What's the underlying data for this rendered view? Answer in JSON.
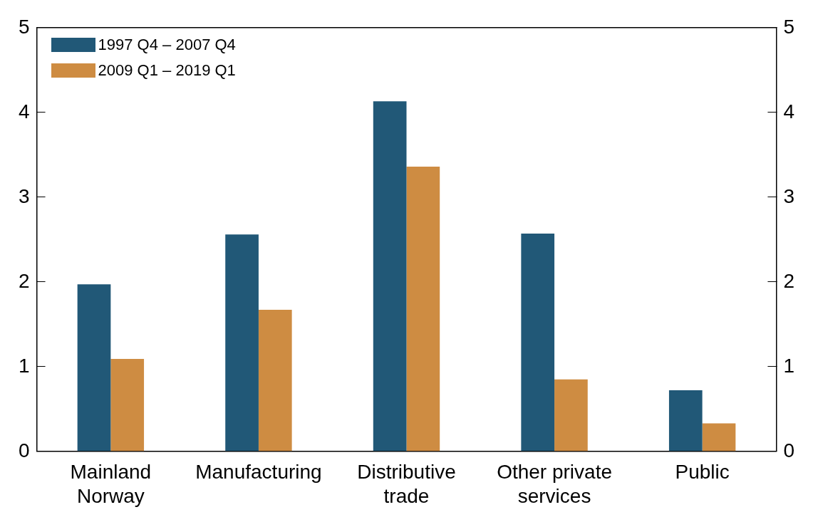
{
  "chart_data": {
    "type": "bar",
    "categories": [
      "Mainland Norway",
      "Manufacturing",
      "Distributive trade",
      "Other private services",
      "Public"
    ],
    "series": [
      {
        "name": "1997 Q4 – 2007 Q4",
        "color": "#215877",
        "values": [
          1.97,
          2.56,
          4.13,
          2.57,
          0.72
        ]
      },
      {
        "name": "2009 Q1 – 2019 Q1",
        "color": "#ce8c42",
        "values": [
          1.09,
          1.67,
          3.36,
          0.85,
          0.33
        ]
      }
    ],
    "ylim": [
      0,
      5
    ],
    "yticks": [
      0,
      1,
      2,
      3,
      4,
      5
    ],
    "y2lim": [
      0,
      5
    ],
    "y2ticks": [
      0,
      1,
      2,
      3,
      4,
      5
    ],
    "grid": false,
    "legend": "top left"
  }
}
